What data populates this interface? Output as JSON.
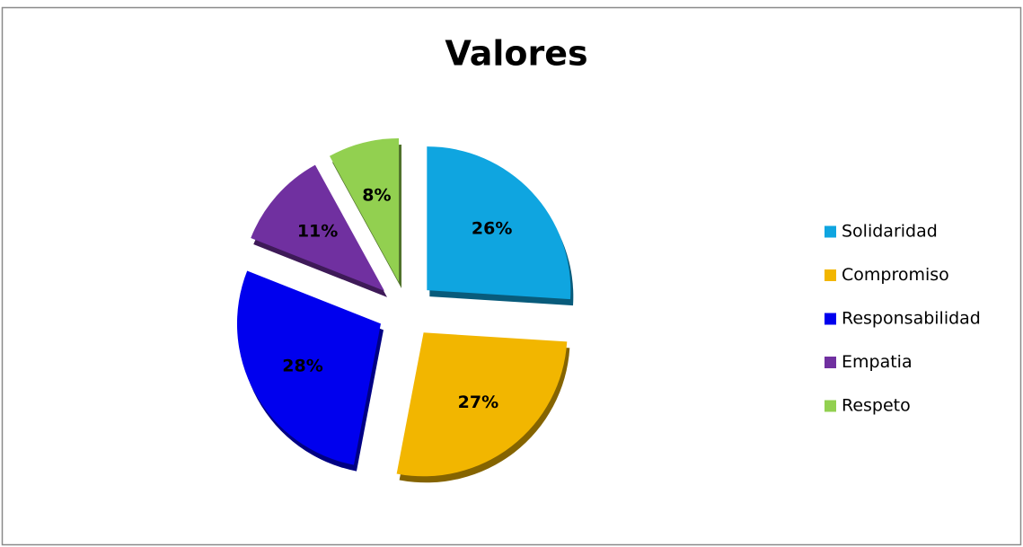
{
  "chart_data": {
    "type": "pie",
    "title": "Valores",
    "categories": [
      "Solidaridad",
      "Compromiso",
      "Responsabilidad",
      "Empatia",
      "Respeto"
    ],
    "values": [
      26,
      27,
      28,
      11,
      8
    ],
    "value_labels": [
      "26%",
      "27%",
      "28%",
      "11%",
      "8%"
    ],
    "colors": [
      "#0fa5e0",
      "#f2b600",
      "#0000ee",
      "#7030a0",
      "#92d050"
    ],
    "legend": "right"
  }
}
